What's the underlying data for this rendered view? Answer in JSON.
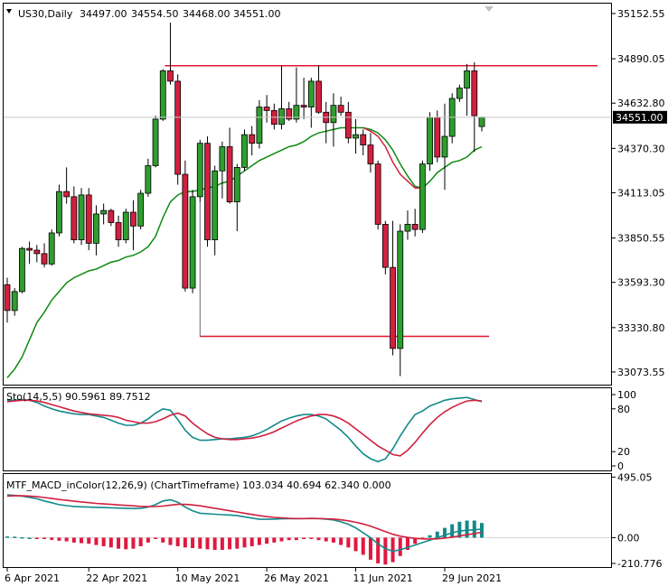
{
  "chart_data": [
    {
      "type": "candlestick",
      "symbol": "US30,Daily",
      "header_values": [
        "34497.00",
        "34554.50",
        "34468.00",
        "34551.00"
      ],
      "y_ticks": [
        "35152.55",
        "34890.05",
        "34632.80",
        "34370.30",
        "34113.05",
        "33850.55",
        "33593.30",
        "33330.80",
        "33073.55"
      ],
      "ylim": [
        33000,
        35210
      ],
      "current_price": "34551.00",
      "x_ticks": [
        "6 Apr 2021",
        "22 Apr 2021",
        "10 May 2021",
        "26 May 2021",
        "11 Jun 2021",
        "29 Jun 2021"
      ],
      "candles": [
        {
          "o": 33580,
          "h": 33620,
          "l": 33360,
          "c": 33430
        },
        {
          "o": 33430,
          "h": 33560,
          "l": 33400,
          "c": 33540
        },
        {
          "o": 33540,
          "h": 33800,
          "l": 33530,
          "c": 33790
        },
        {
          "o": 33790,
          "h": 33830,
          "l": 33700,
          "c": 33780
        },
        {
          "o": 33780,
          "h": 33810,
          "l": 33710,
          "c": 33760
        },
        {
          "o": 33760,
          "h": 33820,
          "l": 33680,
          "c": 33700
        },
        {
          "o": 33700,
          "h": 33900,
          "l": 33690,
          "c": 33880
        },
        {
          "o": 33880,
          "h": 34160,
          "l": 33860,
          "c": 34120
        },
        {
          "o": 34120,
          "h": 34260,
          "l": 34050,
          "c": 34090
        },
        {
          "o": 34090,
          "h": 34150,
          "l": 33820,
          "c": 33840
        },
        {
          "o": 33840,
          "h": 34140,
          "l": 33810,
          "c": 34100
        },
        {
          "o": 34100,
          "h": 34140,
          "l": 33780,
          "c": 33820
        },
        {
          "o": 33820,
          "h": 34040,
          "l": 33750,
          "c": 33990
        },
        {
          "o": 33990,
          "h": 34050,
          "l": 33930,
          "c": 34010
        },
        {
          "o": 34010,
          "h": 34020,
          "l": 33920,
          "c": 33940
        },
        {
          "o": 33940,
          "h": 33980,
          "l": 33800,
          "c": 33840
        },
        {
          "o": 33840,
          "h": 34020,
          "l": 33820,
          "c": 34000
        },
        {
          "o": 34000,
          "h": 34070,
          "l": 33780,
          "c": 33920
        },
        {
          "o": 33920,
          "h": 34130,
          "l": 33900,
          "c": 34110
        },
        {
          "o": 34110,
          "h": 34310,
          "l": 34090,
          "c": 34270
        },
        {
          "o": 34270,
          "h": 34560,
          "l": 34260,
          "c": 34540
        },
        {
          "o": 34540,
          "h": 34830,
          "l": 34530,
          "c": 34820
        },
        {
          "o": 34820,
          "h": 35100,
          "l": 34740,
          "c": 34760
        },
        {
          "o": 34760,
          "h": 34800,
          "l": 34160,
          "c": 34220
        },
        {
          "o": 34220,
          "h": 34300,
          "l": 33540,
          "c": 33560
        },
        {
          "o": 33560,
          "h": 34130,
          "l": 33530,
          "c": 34090
        },
        {
          "o": 34090,
          "h": 34420,
          "l": 34060,
          "c": 34400
        },
        {
          "o": 34400,
          "h": 34440,
          "l": 33800,
          "c": 33840
        },
        {
          "o": 33840,
          "h": 34270,
          "l": 33750,
          "c": 34240
        },
        {
          "o": 34240,
          "h": 34410,
          "l": 34080,
          "c": 34380
        },
        {
          "o": 34380,
          "h": 34490,
          "l": 34050,
          "c": 34060
        },
        {
          "o": 34060,
          "h": 34280,
          "l": 33890,
          "c": 34260
        },
        {
          "o": 34260,
          "h": 34480,
          "l": 34240,
          "c": 34450
        },
        {
          "o": 34450,
          "h": 34500,
          "l": 34330,
          "c": 34400
        },
        {
          "o": 34400,
          "h": 34650,
          "l": 34370,
          "c": 34610
        },
        {
          "o": 34610,
          "h": 34680,
          "l": 34520,
          "c": 34590
        },
        {
          "o": 34590,
          "h": 34630,
          "l": 34480,
          "c": 34510
        },
        {
          "o": 34510,
          "h": 34850,
          "l": 34480,
          "c": 34600
        },
        {
          "o": 34600,
          "h": 34640,
          "l": 34530,
          "c": 34540
        },
        {
          "o": 34540,
          "h": 34840,
          "l": 34520,
          "c": 34620
        },
        {
          "o": 34620,
          "h": 34780,
          "l": 34540,
          "c": 34610
        },
        {
          "o": 34610,
          "h": 34780,
          "l": 34490,
          "c": 34760
        },
        {
          "o": 34760,
          "h": 34850,
          "l": 34570,
          "c": 34580
        },
        {
          "o": 34580,
          "h": 34640,
          "l": 34400,
          "c": 34520
        },
        {
          "o": 34520,
          "h": 34690,
          "l": 34380,
          "c": 34620
        },
        {
          "o": 34620,
          "h": 34670,
          "l": 34560,
          "c": 34580
        },
        {
          "o": 34580,
          "h": 34640,
          "l": 34400,
          "c": 34430
        },
        {
          "o": 34430,
          "h": 34540,
          "l": 34340,
          "c": 34450
        },
        {
          "o": 34450,
          "h": 34480,
          "l": 34330,
          "c": 34390
        },
        {
          "o": 34390,
          "h": 34460,
          "l": 34230,
          "c": 34280
        },
        {
          "o": 34280,
          "h": 34300,
          "l": 33900,
          "c": 33930
        },
        {
          "o": 33930,
          "h": 33950,
          "l": 33640,
          "c": 33680
        },
        {
          "o": 33680,
          "h": 33950,
          "l": 33170,
          "c": 33210
        },
        {
          "o": 33210,
          "h": 33930,
          "l": 33050,
          "c": 33890
        },
        {
          "o": 33890,
          "h": 34010,
          "l": 33840,
          "c": 33930
        },
        {
          "o": 33930,
          "h": 34020,
          "l": 33860,
          "c": 33900
        },
        {
          "o": 33900,
          "h": 34300,
          "l": 33880,
          "c": 34280
        },
        {
          "o": 34280,
          "h": 34580,
          "l": 34240,
          "c": 34550
        },
        {
          "o": 34550,
          "h": 34590,
          "l": 34290,
          "c": 34320
        },
        {
          "o": 34320,
          "h": 34630,
          "l": 34130,
          "c": 34440
        },
        {
          "o": 34440,
          "h": 34690,
          "l": 34400,
          "c": 34660
        },
        {
          "o": 34660,
          "h": 34740,
          "l": 34640,
          "c": 34720
        },
        {
          "o": 34720,
          "h": 34860,
          "l": 34560,
          "c": 34820
        },
        {
          "o": 34820,
          "h": 34870,
          "l": 34350,
          "c": 34560
        },
        {
          "o": 34497,
          "h": 34554.5,
          "l": 34468,
          "c": 34551
        }
      ],
      "ma_green": [
        33040,
        33090,
        33160,
        33260,
        33360,
        33420,
        33490,
        33540,
        33590,
        33620,
        33640,
        33660,
        33670,
        33690,
        33710,
        33720,
        33740,
        33750,
        33770,
        33800,
        33860,
        33970,
        34060,
        34100,
        34120,
        34120,
        34130,
        34140,
        34150,
        34170,
        34180,
        34210,
        34240,
        34270,
        34300,
        34320,
        34340,
        34360,
        34380,
        34390,
        34410,
        34440,
        34460,
        34470,
        34480,
        34490,
        34490,
        34490,
        34490,
        34480,
        34460,
        34420,
        34360,
        34280,
        34210,
        34150,
        34140,
        34180,
        34230,
        34260,
        34290,
        34300,
        34320,
        34360,
        34380
      ],
      "ma_red": [
        null,
        null,
        null,
        null,
        null,
        null,
        null,
        null,
        null,
        null,
        null,
        null,
        null,
        null,
        null,
        null,
        null,
        null,
        null,
        null,
        null,
        null,
        null,
        null,
        null,
        null,
        null,
        null,
        null,
        null,
        null,
        null,
        null,
        null,
        null,
        null,
        null,
        null,
        null,
        null,
        null,
        null,
        null,
        null,
        null,
        null,
        null,
        null,
        34490,
        34470,
        34440,
        34380,
        34290,
        34220,
        34180,
        34140,
        34140
      ],
      "hline_top": 34850,
      "hline_top_from": 22,
      "hline_bottom": 33280,
      "hline_bottom_from": 26,
      "colors": {
        "up": "#2e9e2e",
        "down": "#d0213f",
        "ma": "#0e8a12",
        "ma_red": "#d0213f",
        "hline": "#e0162b",
        "text": "#000000"
      }
    },
    {
      "type": "line",
      "header": "Sto(14,5,5) 90.5961 89.7512",
      "y_ticks": [
        "100",
        "80",
        "20",
        "0"
      ],
      "ylim": [
        0,
        100
      ],
      "series": [
        {
          "color": "#138a8a",
          "values": [
            92,
            92,
            93,
            92,
            89,
            84,
            80,
            77,
            75,
            73,
            72,
            72,
            70,
            68,
            64,
            60,
            57,
            57,
            60,
            66,
            74,
            80,
            78,
            65,
            50,
            40,
            36,
            36,
            37,
            38,
            38,
            39,
            40,
            42,
            46,
            51,
            57,
            63,
            67,
            70,
            72,
            72,
            70,
            66,
            58,
            50,
            40,
            28,
            17,
            10,
            6,
            10,
            24,
            42,
            58,
            72,
            77,
            84,
            88,
            92,
            94,
            95,
            96,
            93,
            90
          ]
        },
        {
          "color": "#d0213f",
          "values": [
            90,
            91,
            92,
            92,
            91,
            89,
            86,
            83,
            80,
            77,
            75,
            73,
            72,
            71,
            70,
            68,
            64,
            62,
            60,
            60,
            62,
            66,
            71,
            74,
            70,
            60,
            52,
            45,
            40,
            38,
            37,
            37,
            38,
            39,
            41,
            44,
            48,
            53,
            58,
            63,
            67,
            70,
            72,
            72,
            70,
            66,
            60,
            52,
            44,
            36,
            28,
            22,
            16,
            14,
            22,
            33,
            46,
            58,
            68,
            76,
            82,
            87,
            91,
            92,
            91
          ]
        }
      ]
    },
    {
      "type": "bar",
      "header": "MTF_MACD_inColor(12,26,9) (ChartTimeframe) 103.034 40.694 62.340 0.000",
      "y_ticks": [
        "495.05",
        "0.00",
        "-210.776"
      ],
      "ylim": [
        -240,
        520
      ],
      "histogram": [
        10,
        8,
        4,
        0,
        -5,
        -10,
        -18,
        -25,
        -30,
        -40,
        -45,
        -50,
        -60,
        -70,
        -80,
        -90,
        -95,
        -90,
        -70,
        -40,
        -10,
        -40,
        -60,
        -70,
        -80,
        -85,
        -90,
        -95,
        -100,
        -100,
        -95,
        -90,
        -80,
        -70,
        -60,
        -50,
        -40,
        -30,
        -20,
        -20,
        -10,
        -10,
        -20,
        -30,
        -40,
        -60,
        -80,
        -110,
        -140,
        -180,
        -210,
        -220,
        -200,
        -150,
        -100,
        -50,
        -10,
        20,
        50,
        80,
        110,
        130,
        140,
        140,
        120
      ],
      "series": [
        {
          "color": "#138a8a",
          "values": [
            350,
            345,
            340,
            330,
            318,
            300,
            285,
            270,
            262,
            255,
            252,
            250,
            248,
            246,
            244,
            242,
            240,
            238,
            240,
            250,
            270,
            300,
            310,
            290,
            250,
            220,
            200,
            195,
            192,
            188,
            185,
            180,
            170,
            160,
            150,
            150,
            152,
            154,
            155,
            155,
            156,
            158,
            156,
            152,
            145,
            130,
            110,
            80,
            40,
            0,
            -50,
            -90,
            -110,
            -100,
            -80,
            -60,
            -40,
            -20,
            0,
            20,
            40,
            55,
            60,
            65,
            70
          ]
        },
        {
          "color": "#d0213f",
          "values": [
            340,
            342,
            342,
            340,
            335,
            328,
            320,
            312,
            305,
            298,
            292,
            286,
            280,
            276,
            272,
            268,
            264,
            260,
            256,
            254,
            254,
            258,
            266,
            272,
            272,
            268,
            260,
            250,
            240,
            230,
            220,
            210,
            200,
            190,
            180,
            172,
            166,
            162,
            158,
            156,
            156,
            156,
            156,
            155,
            152,
            146,
            138,
            126,
            112,
            94,
            72,
            50,
            28,
            12,
            2,
            -6,
            -10,
            -12,
            -10,
            -4,
            4,
            14,
            24,
            34,
            44
          ]
        }
      ]
    }
  ]
}
